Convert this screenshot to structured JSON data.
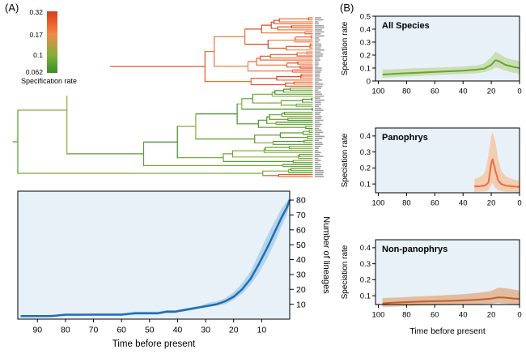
{
  "panelA": {
    "label": "(A)"
  },
  "panelB": {
    "label": "(B)"
  },
  "legend": {
    "title": "Specification rate",
    "ticks": [
      "0.32",
      "0.17",
      "0.1",
      "0.062"
    ]
  },
  "tree": {
    "n_tips": 80,
    "root_age": 96,
    "seed": 1337,
    "rate_color_stops": [
      [
        0.062,
        "#3c8c28"
      ],
      [
        0.1,
        "#7fb03a"
      ],
      [
        0.17,
        "#f08a4b"
      ],
      [
        0.24,
        "#ea6430"
      ],
      [
        0.32,
        "#d43d1f"
      ]
    ],
    "green_rate_range": [
      0.062,
      0.112
    ],
    "orange_rate_range": [
      0.16,
      0.32
    ],
    "orange_clade": {
      "time_range": [
        22,
        40
      ]
    }
  },
  "chart_data": [
    {
      "id": "ltt",
      "type": "area",
      "xlabel": "Time before present",
      "ylabel": "Number of lineages",
      "xlim": [
        97,
        0
      ],
      "ylim": [
        0,
        86
      ],
      "xticks": [
        90,
        80,
        70,
        60,
        50,
        40,
        30,
        20,
        10
      ],
      "yticks": [
        10,
        20,
        30,
        40,
        50,
        60,
        70,
        80
      ],
      "x": [
        96,
        90,
        85,
        80,
        75,
        70,
        65,
        60,
        55,
        50,
        47,
        44,
        41,
        38,
        35,
        32,
        29,
        26,
        23,
        20,
        17,
        14,
        11,
        8,
        5,
        3,
        1,
        0
      ],
      "y": [
        2,
        2,
        2,
        3,
        3,
        3,
        3,
        3,
        4,
        4,
        4,
        5,
        5,
        6,
        7,
        8,
        9,
        10,
        12,
        15,
        20,
        27,
        37,
        48,
        60,
        68,
        75,
        80
      ],
      "lower": [
        2,
        2,
        2,
        2,
        2,
        3,
        3,
        3,
        3,
        3,
        3,
        4,
        4,
        5,
        6,
        7,
        8,
        9,
        10,
        13,
        17,
        23,
        31,
        41,
        53,
        62,
        70,
        78
      ],
      "upper": [
        2,
        2,
        3,
        3,
        3,
        4,
        4,
        4,
        5,
        5,
        5,
        6,
        6,
        7,
        8,
        9,
        11,
        12,
        14,
        18,
        24,
        32,
        44,
        56,
        67,
        74,
        79,
        82
      ],
      "line_color": "#1f6eb5",
      "band_color": "#8fc1e4",
      "bg": "#e8f1f8"
    },
    {
      "id": "all_species",
      "type": "line",
      "title": "All Species",
      "ylabel": "Speciation rate",
      "xlim": [
        102,
        0
      ],
      "ylim": [
        0,
        0.5
      ],
      "xticks": [
        100,
        80,
        60,
        40,
        20,
        0
      ],
      "yticks": [
        0,
        0.1,
        0.2,
        0.3,
        0.4,
        0.5
      ],
      "x": [
        97,
        90,
        80,
        70,
        60,
        50,
        40,
        30,
        25,
        20,
        17,
        15,
        10,
        5,
        0
      ],
      "y": [
        0.05,
        0.055,
        0.06,
        0.065,
        0.07,
        0.075,
        0.08,
        0.088,
        0.095,
        0.125,
        0.16,
        0.155,
        0.125,
        0.11,
        0.1
      ],
      "lower": [
        0.025,
        0.03,
        0.035,
        0.04,
        0.045,
        0.05,
        0.055,
        0.06,
        0.068,
        0.085,
        0.105,
        0.1,
        0.08,
        0.065,
        0.055
      ],
      "upper": [
        0.09,
        0.09,
        0.095,
        0.1,
        0.103,
        0.107,
        0.112,
        0.12,
        0.135,
        0.185,
        0.225,
        0.215,
        0.18,
        0.165,
        0.155
      ],
      "line_color": "#6ca32e",
      "band_color": "#b5d289",
      "bg": "#e8f1f8"
    },
    {
      "id": "panophrys",
      "type": "line",
      "title": "Panophrys",
      "ylabel": "Speciation rate",
      "xlim": [
        102,
        0
      ],
      "ylim": [
        0.045,
        0.45
      ],
      "xticks": [
        100,
        80,
        60,
        40,
        20,
        0
      ],
      "yticks": [
        0.1,
        0.2,
        0.3,
        0.4
      ],
      "x": [
        32,
        29,
        26,
        24,
        22,
        20,
        19,
        17,
        15,
        13,
        10,
        5,
        0
      ],
      "y": [
        0.085,
        0.085,
        0.088,
        0.092,
        0.11,
        0.23,
        0.255,
        0.18,
        0.12,
        0.1,
        0.09,
        0.085,
        0.082
      ],
      "lower": [
        0.05,
        0.052,
        0.053,
        0.055,
        0.06,
        0.095,
        0.105,
        0.075,
        0.06,
        0.055,
        0.052,
        0.05,
        0.048
      ],
      "upper": [
        0.13,
        0.14,
        0.155,
        0.185,
        0.28,
        0.4,
        0.425,
        0.36,
        0.25,
        0.185,
        0.15,
        0.13,
        0.12
      ],
      "line_color": "#f26b3a",
      "band_color": "#f6b584",
      "bg": "#e8f1f8"
    },
    {
      "id": "non_panophrys",
      "type": "line",
      "title": "Non-panophrys",
      "xlabel": "Time before present",
      "ylabel": "Speciation rate",
      "xlim": [
        102,
        0
      ],
      "ylim": [
        0.045,
        0.45
      ],
      "xticks": [
        100,
        80,
        60,
        40,
        20,
        0
      ],
      "yticks": [
        0.1,
        0.2,
        0.3,
        0.4
      ],
      "x": [
        97,
        90,
        80,
        70,
        60,
        50,
        40,
        30,
        20,
        15,
        10,
        5,
        0
      ],
      "y": [
        0.052,
        0.056,
        0.06,
        0.063,
        0.066,
        0.068,
        0.071,
        0.075,
        0.082,
        0.09,
        0.088,
        0.083,
        0.08
      ],
      "lower": [
        0.03,
        0.032,
        0.035,
        0.038,
        0.04,
        0.042,
        0.044,
        0.047,
        0.05,
        0.055,
        0.05,
        0.045,
        0.04
      ],
      "upper": [
        0.085,
        0.088,
        0.092,
        0.096,
        0.1,
        0.105,
        0.11,
        0.118,
        0.13,
        0.15,
        0.148,
        0.14,
        0.132
      ],
      "line_color": "#bf5f2a",
      "band_color": "#dd9a62",
      "bg": "#e8f1f8"
    }
  ]
}
